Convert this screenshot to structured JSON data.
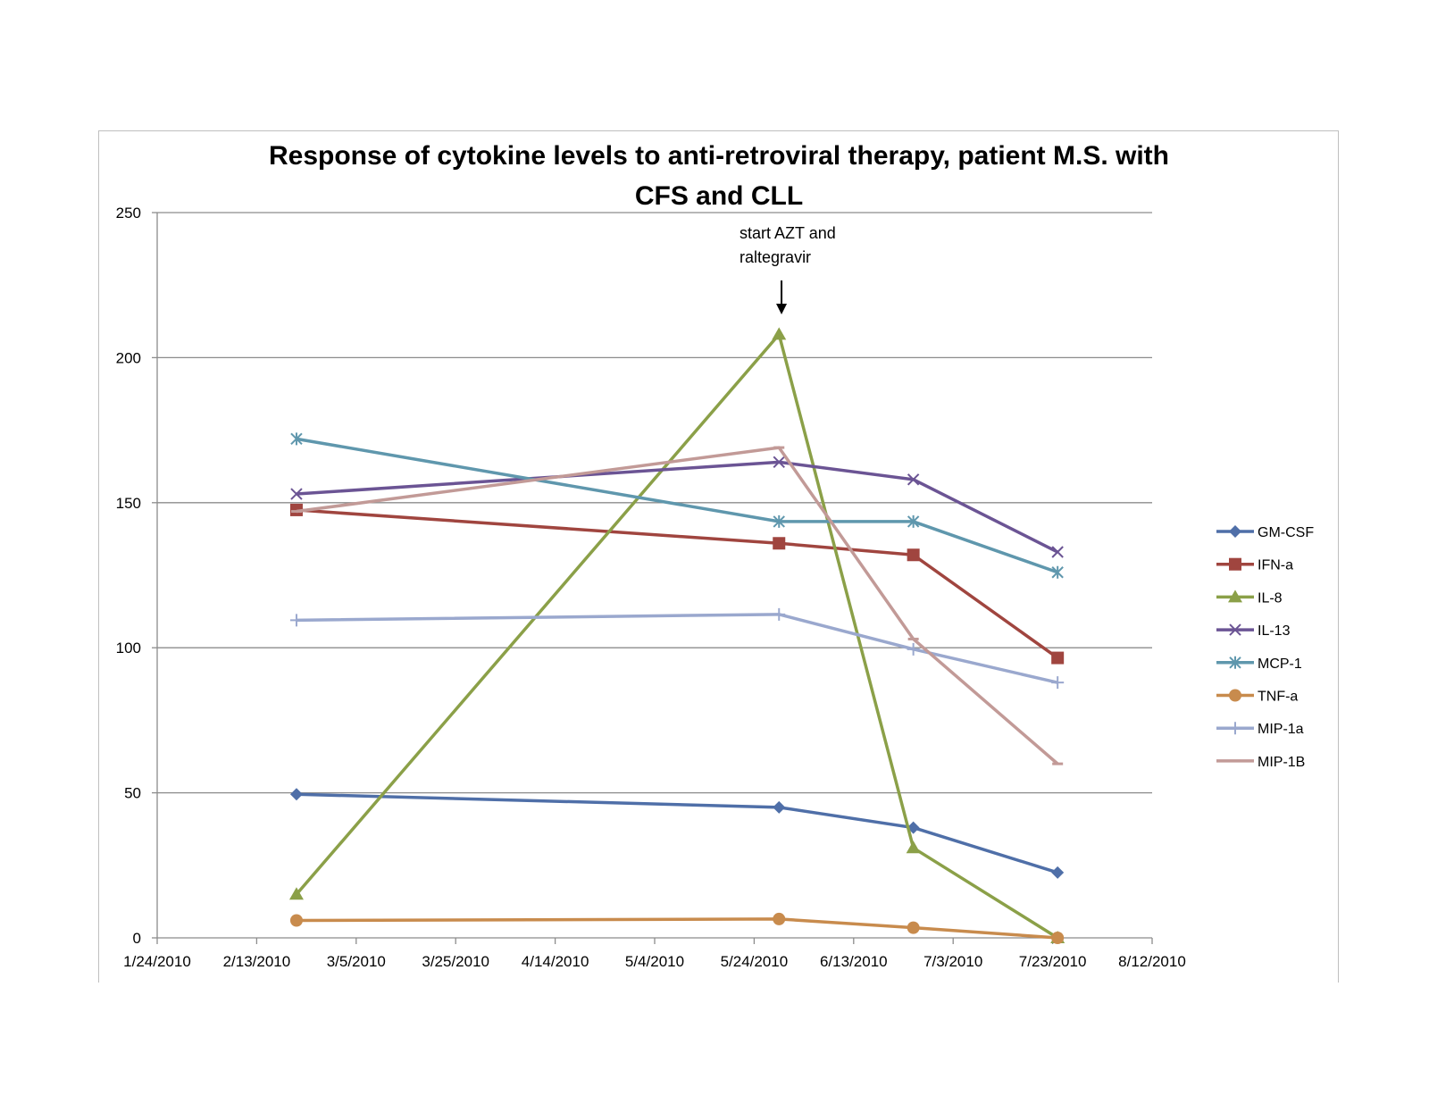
{
  "chart_data": {
    "type": "line",
    "title_lines": [
      "Response of cytokine levels to anti-retroviral therapy, patient M.S. with",
      "CFS and CLL"
    ],
    "xlabel": "",
    "ylabel": "",
    "ylim": [
      0,
      250
    ],
    "yticks": [
      0,
      50,
      100,
      150,
      200,
      250
    ],
    "x_tick_labels": [
      "1/24/2010",
      "2/13/2010",
      "3/5/2010",
      "3/25/2010",
      "4/14/2010",
      "5/4/2010",
      "5/24/2010",
      "6/13/2010",
      "7/3/2010",
      "7/23/2010",
      "8/12/2010"
    ],
    "x_day_range": [
      0,
      200
    ],
    "x_tick_step_days": 20,
    "x_dates": [
      "2/21/2010",
      "5/28/2010",
      "6/24/2010",
      "7/23/2010"
    ],
    "x_days": [
      28,
      125,
      152,
      181
    ],
    "grid": true,
    "legend_position": "right",
    "series": [
      {
        "name": "GM-CSF",
        "color": "#4f6fa8",
        "marker": "diamond",
        "values": [
          49.5,
          45,
          38,
          22.5
        ]
      },
      {
        "name": "IFN-a",
        "color": "#a0453f",
        "marker": "square",
        "values": [
          147.5,
          136,
          132,
          96.5
        ]
      },
      {
        "name": "IL-8",
        "color": "#8ba048",
        "marker": "triangle",
        "values": [
          15,
          208,
          31,
          0
        ]
      },
      {
        "name": "IL-13",
        "color": "#6b5494",
        "marker": "x",
        "values": [
          153,
          164,
          158,
          133
        ]
      },
      {
        "name": "MCP-1",
        "color": "#5f97ad",
        "marker": "asterisk",
        "values": [
          172,
          143.5,
          143.5,
          126
        ]
      },
      {
        "name": "TNF-a",
        "color": "#c88b4d",
        "marker": "circle",
        "values": [
          6,
          6.5,
          3.5,
          0
        ]
      },
      {
        "name": "MIP-1a",
        "color": "#9aa8ce",
        "marker": "plus",
        "values": [
          109.5,
          111.5,
          99.5,
          88
        ]
      },
      {
        "name": "MIP-1B",
        "color": "#c29a97",
        "marker": "dash",
        "values": [
          147,
          169,
          103,
          60
        ]
      }
    ],
    "annotations": [
      {
        "text_lines": [
          "start AZT and",
          "raltegravir"
        ],
        "x_day": 125.5,
        "arrow_from_y": 225,
        "arrow_to_y": 213
      }
    ]
  }
}
